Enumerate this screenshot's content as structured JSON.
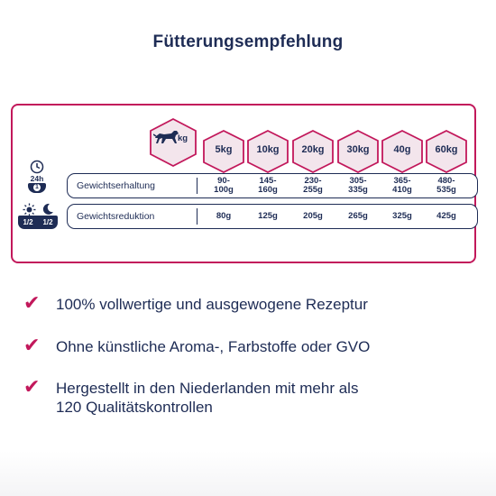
{
  "title": "Fütterungsempfehlung",
  "colors": {
    "accent": "#c2185b",
    "navy": "#1e2c55",
    "hex_fill": "#f3e5ec"
  },
  "table": {
    "header_unit": "kg",
    "columns": [
      "5kg",
      "10kg",
      "20kg",
      "30kg",
      "40g",
      "60kg"
    ],
    "rows": [
      {
        "label": "Gewichtserhaltung",
        "values": [
          "90-\n100g",
          "145-\n160g",
          "230-\n255g",
          "305-\n335g",
          "365-\n410g",
          "480-\n535g"
        ]
      },
      {
        "label": "Gewichtsreduktion",
        "values": [
          "80g",
          "125g",
          "205g",
          "265g",
          "325g",
          "425g"
        ]
      }
    ]
  },
  "side_icons": {
    "period_label": "24h",
    "bowl_count": "1",
    "half_left": "1/2",
    "half_right": "1/2"
  },
  "benefits": [
    "100% vollwertige und ausgewogene Rezeptur",
    "Ohne künstliche Aroma-, Farbstoffe oder GVO",
    "Hergestellt in den Niederlanden mit mehr als\n120 Qualitätskontrollen"
  ],
  "icons": [
    "dog-icon",
    "clock-icon",
    "bowl-icon",
    "sun-icon",
    "moon-icon",
    "checkmark-icon"
  ]
}
